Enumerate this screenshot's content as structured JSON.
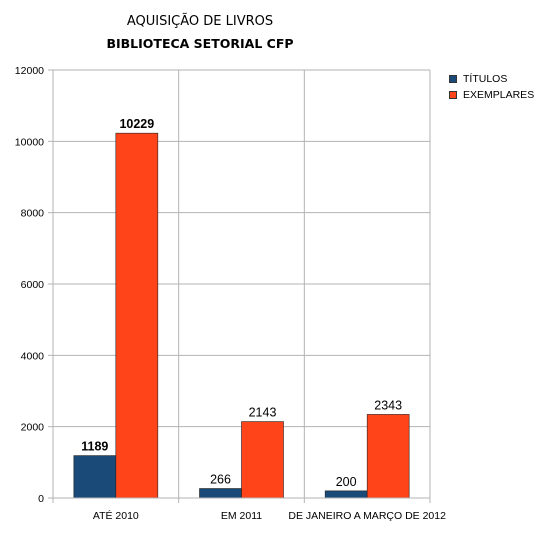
{
  "header": {
    "title": "AQUISIÇÃO DE LIVROS",
    "subtitle": "BIBLIOTECA SETORIAL CFP"
  },
  "colors": {
    "titulos": "#1a4a78",
    "exemplares": "#ff4419",
    "grid": "#b3b3b3"
  },
  "chart_data": {
    "type": "bar",
    "title": "AQUISIÇÃO DE LIVROS",
    "subtitle": "BIBLIOTECA SETORIAL CFP",
    "categories": [
      "ATÉ 2010",
      "EM 2011",
      "DE JANEIRO A MARÇO DE 2012"
    ],
    "series": [
      {
        "name": "TÍTULOS",
        "values": [
          1189,
          266,
          200
        ]
      },
      {
        "name": "EXEMPLARES",
        "values": [
          10229,
          2143,
          2343
        ]
      }
    ],
    "data_labels": [
      [
        "1189",
        "266",
        "200"
      ],
      [
        "10229",
        "2143",
        "2343"
      ]
    ],
    "ylim": [
      0,
      12000
    ],
    "yticks": [
      0,
      2000,
      4000,
      6000,
      8000,
      10000,
      12000
    ],
    "ytick_labels": [
      "0",
      "2000",
      "4000",
      "6000",
      "8000",
      "10000",
      "12000"
    ],
    "grid": true,
    "legend_position": "right"
  }
}
